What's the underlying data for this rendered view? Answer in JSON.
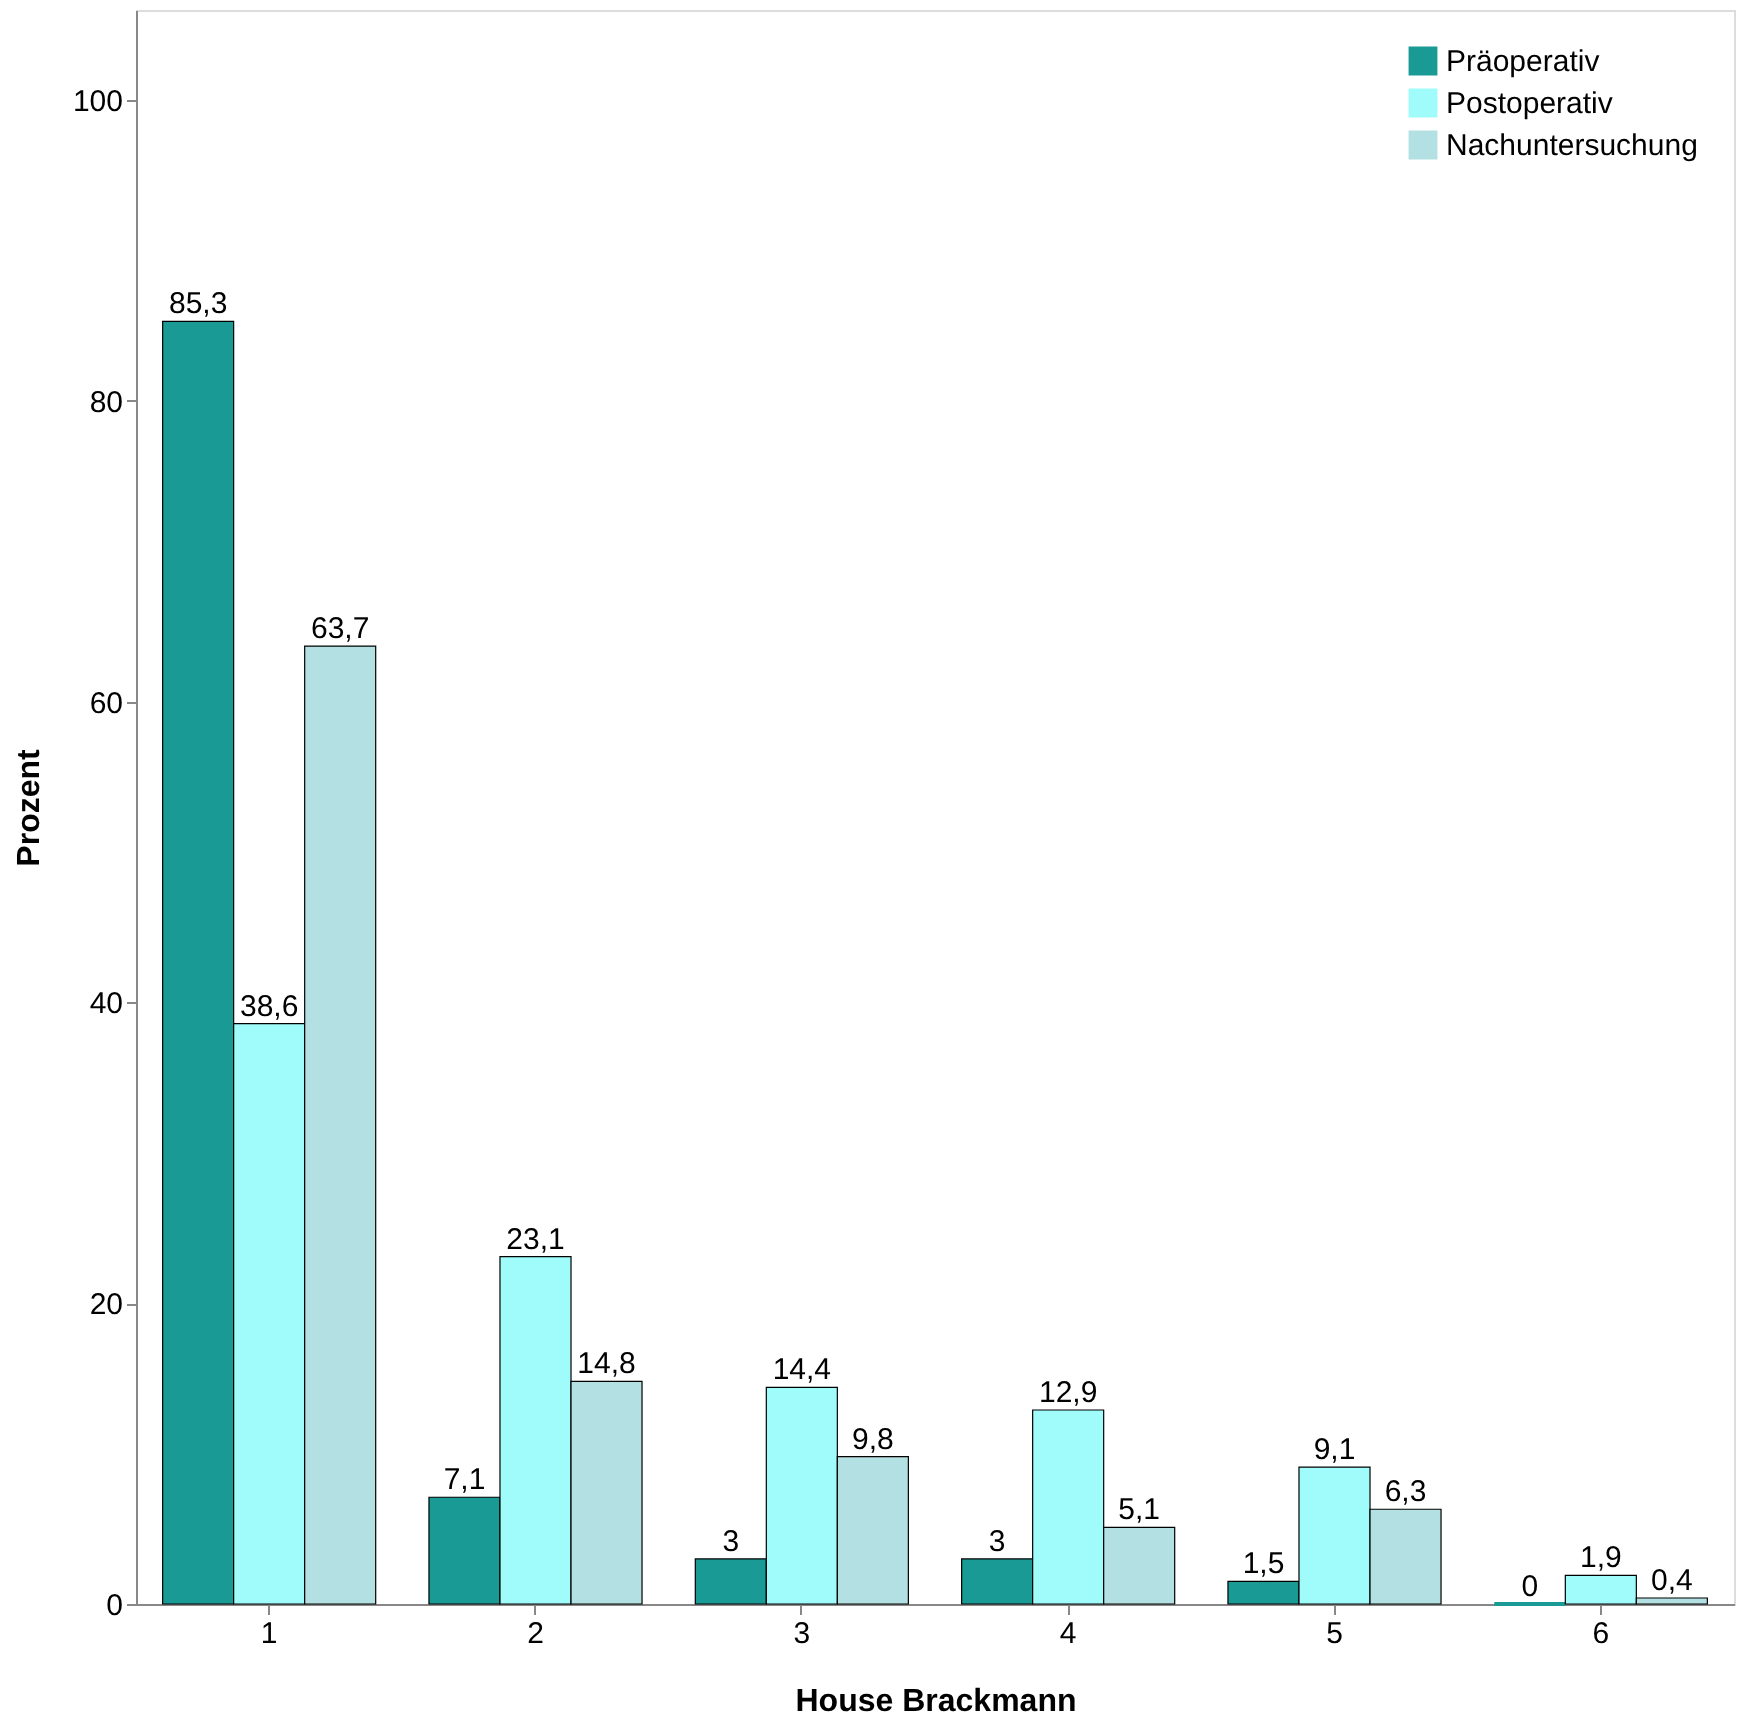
{
  "chart_data": {
    "type": "bar",
    "xlabel": "House Brackmann",
    "ylabel": "Prozent",
    "categories": [
      "1",
      "2",
      "3",
      "4",
      "5",
      "6"
    ],
    "series": [
      {
        "name": "Präoperativ",
        "color": "#1a9a94",
        "values": [
          85.3,
          7.1,
          3,
          3,
          1.5,
          0
        ],
        "value_labels": [
          "85,3",
          "7,1",
          "3",
          "3",
          "1,5",
          "0"
        ]
      },
      {
        "name": "Postoperativ",
        "color": "#9ffcfa",
        "values": [
          38.6,
          23.1,
          14.4,
          12.9,
          9.1,
          1.9
        ],
        "value_labels": [
          "38,6",
          "23,1",
          "14,4",
          "12,9",
          "9,1",
          "1,9"
        ]
      },
      {
        "name": "Nachuntersuchung",
        "color": "#b3e0e2",
        "values": [
          63.7,
          14.8,
          9.8,
          5.1,
          6.3,
          0.4
        ],
        "value_labels": [
          "63,7",
          "14,8",
          "9,8",
          "5,1",
          "6,3",
          "0,4"
        ]
      }
    ],
    "ylim": [
      0,
      106
    ],
    "yticks": [
      0,
      20,
      40,
      60,
      80,
      100
    ],
    "grid": false,
    "legend": "top right"
  }
}
